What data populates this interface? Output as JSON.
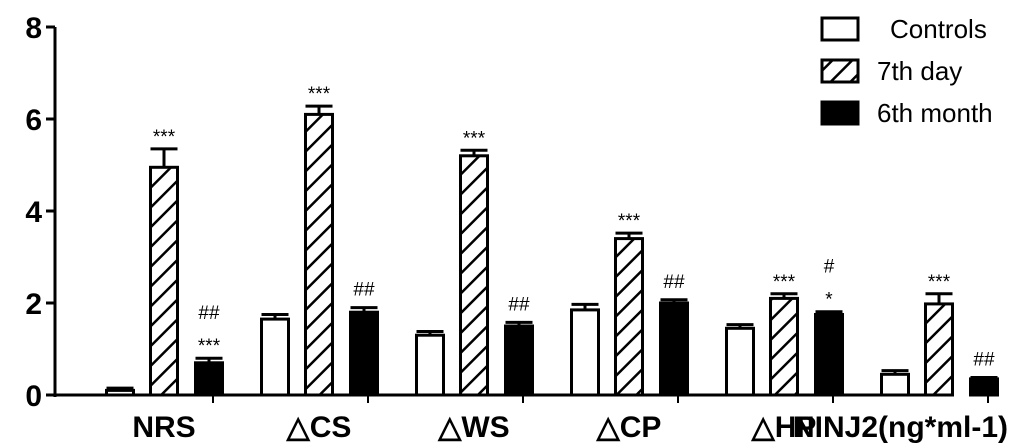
{
  "chart_data": {
    "type": "bar",
    "categories": [
      "NRS",
      "△CS",
      "△WS",
      "△CP",
      "△HP",
      "NINJ2(ng*ml-1)"
    ],
    "series": [
      {
        "name": "Controls",
        "values": [
          0.1,
          1.65,
          1.3,
          1.85,
          1.45,
          0.45
        ],
        "errors": [
          0.05,
          0.1,
          0.08,
          0.12,
          0.08,
          0.08
        ],
        "pattern": "empty"
      },
      {
        "name": "7th day",
        "values": [
          4.95,
          6.1,
          5.2,
          3.4,
          2.1,
          1.98
        ],
        "errors": [
          0.4,
          0.18,
          0.12,
          0.12,
          0.1,
          0.22
        ],
        "pattern": "hatched"
      },
      {
        "name": "6th month",
        "values": [
          0.7,
          1.8,
          1.5,
          2.0,
          1.75,
          0.35
        ],
        "errors": [
          0.1,
          0.1,
          0.08,
          0.07,
          0.06,
          0.03
        ],
        "pattern": "solid"
      }
    ],
    "annotations": [
      {
        "category": 0,
        "series": 1,
        "lines": [
          "***"
        ]
      },
      {
        "category": 0,
        "series": 2,
        "lines": [
          "##",
          "***"
        ]
      },
      {
        "category": 1,
        "series": 1,
        "lines": [
          "***"
        ]
      },
      {
        "category": 1,
        "series": 2,
        "lines": [
          "##"
        ]
      },
      {
        "category": 2,
        "series": 1,
        "lines": [
          "***"
        ]
      },
      {
        "category": 2,
        "series": 2,
        "lines": [
          "##"
        ]
      },
      {
        "category": 3,
        "series": 1,
        "lines": [
          "***"
        ]
      },
      {
        "category": 3,
        "series": 2,
        "lines": [
          "##"
        ]
      },
      {
        "category": 4,
        "series": 1,
        "lines": [
          "***"
        ]
      },
      {
        "category": 4,
        "series": 2,
        "lines": [
          "#",
          "*"
        ]
      },
      {
        "category": 5,
        "series": 1,
        "lines": [
          "***"
        ]
      },
      {
        "category": 5,
        "series": 2,
        "lines": [
          "##"
        ]
      }
    ],
    "ylim": [
      0,
      8
    ],
    "yticks": [
      0,
      2,
      4,
      6,
      8
    ],
    "title": "",
    "xlabel": "",
    "ylabel": "",
    "grid": false,
    "legend_position": "top-right",
    "colors": {
      "bar_edge": "#000000",
      "fill_empty": "#ffffff",
      "fill_solid": "#000000"
    }
  }
}
